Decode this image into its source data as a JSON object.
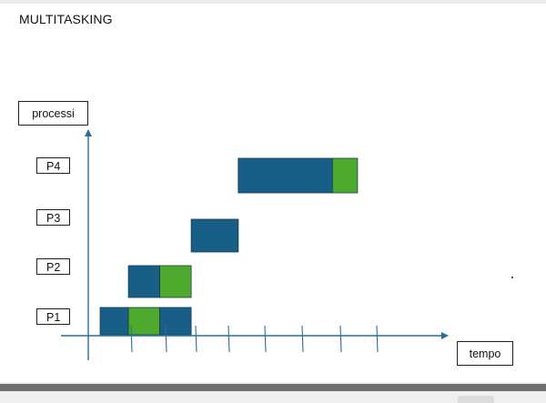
{
  "slide": {
    "title": "MULTITASKING"
  },
  "axes": {
    "y_label": "processi",
    "x_label": "tempo"
  },
  "processes": [
    {
      "id": "p1",
      "label": "P1"
    },
    {
      "id": "p2",
      "label": "P2"
    },
    {
      "id": "p3",
      "label": "P3"
    },
    {
      "id": "p4",
      "label": "P4"
    }
  ],
  "colors": {
    "running": "#175f87",
    "io": "#4daa2e",
    "axis": "#2a6e96",
    "border": "#1f1f1f"
  },
  "chart_data": {
    "type": "gantt",
    "title": "MULTITASKING",
    "xlabel": "tempo",
    "ylabel": "processi",
    "categories": [
      "P1",
      "P2",
      "P3",
      "P4"
    ],
    "x_ticks": 9,
    "legend": "none",
    "grid": false,
    "segments": [
      {
        "process": "P1",
        "start": 0.0,
        "end": 0.9,
        "state": "running"
      },
      {
        "process": "P1",
        "start": 0.9,
        "end": 1.9,
        "state": "io"
      },
      {
        "process": "P1",
        "start": 1.9,
        "end": 2.9,
        "state": "running"
      },
      {
        "process": "P2",
        "start": 0.9,
        "end": 1.9,
        "state": "running"
      },
      {
        "process": "P2",
        "start": 1.9,
        "end": 2.9,
        "state": "io"
      },
      {
        "process": "P3",
        "start": 2.9,
        "end": 4.4,
        "state": "running"
      },
      {
        "process": "P4",
        "start": 4.4,
        "end": 7.4,
        "state": "running"
      },
      {
        "process": "P4",
        "start": 7.4,
        "end": 8.2,
        "state": "io"
      }
    ]
  }
}
